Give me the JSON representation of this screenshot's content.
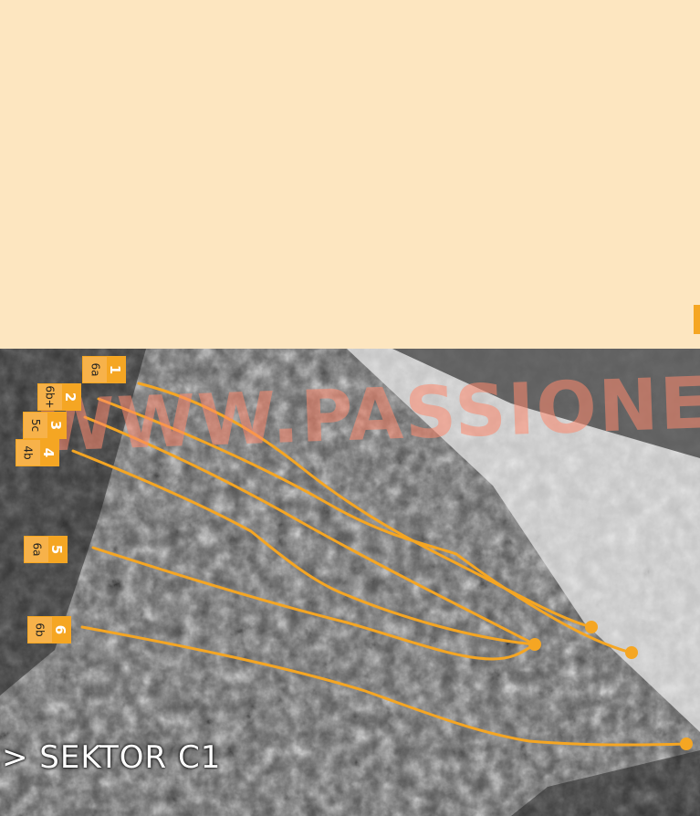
{
  "watermark": "WWW.PASSIONE",
  "sector_title": "> SEKTOR C1",
  "routes": [
    {
      "number": "1",
      "grade": "6a"
    },
    {
      "number": "2",
      "grade": "6b+"
    },
    {
      "number": "3",
      "grade": "5c"
    },
    {
      "number": "4",
      "grade": "4b"
    },
    {
      "number": "5",
      "grade": "6a"
    },
    {
      "number": "6",
      "grade": "6b"
    }
  ],
  "colors": {
    "background": "#fde6c0",
    "accent": "#f5a623",
    "route_line": "#f5a623"
  }
}
